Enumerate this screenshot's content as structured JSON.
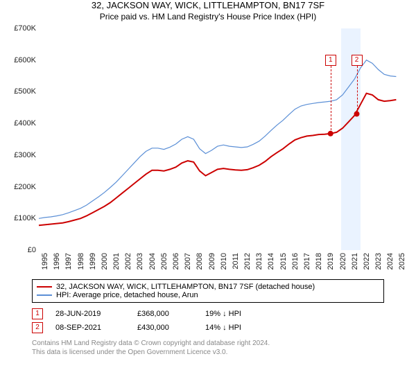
{
  "title": "32, JACKSON WAY, WICK, LITTLEHAMPTON, BN17 7SF",
  "subtitle": "Price paid vs. HM Land Registry's House Price Index (HPI)",
  "chart": {
    "type": "line",
    "background_color": "#ffffff",
    "highlight_color": "#eaf3ff",
    "highlight_x_start": 2020.4,
    "highlight_x_end": 2022.0,
    "xlim": [
      1995,
      2025.5
    ],
    "ylim": [
      0,
      700000
    ],
    "ytick_step": 100000,
    "ytick_labels": [
      "£0",
      "£100K",
      "£200K",
      "£300K",
      "£400K",
      "£500K",
      "£600K",
      "£700K"
    ],
    "xtick_step": 1,
    "xtick_labels": [
      "1995",
      "1996",
      "1997",
      "1998",
      "1999",
      "2000",
      "2001",
      "2002",
      "2003",
      "2004",
      "2005",
      "2006",
      "2007",
      "2008",
      "2009",
      "2010",
      "2011",
      "2012",
      "2013",
      "2014",
      "2015",
      "2016",
      "2017",
      "2018",
      "2019",
      "2020",
      "2021",
      "2022",
      "2023",
      "2024",
      "2025"
    ],
    "grid": false,
    "label_fontsize": 11,
    "title_fontsize": 13,
    "series": [
      {
        "name": "property",
        "label": "32, JACKSON WAY, WICK, LITTLEHAMPTON, BN17 7SF (detached house)",
        "color": "#cc0000",
        "line_width": 2,
        "points": [
          [
            1995,
            78000
          ],
          [
            1995.5,
            80000
          ],
          [
            1996,
            82000
          ],
          [
            1996.5,
            84000
          ],
          [
            1997,
            86000
          ],
          [
            1997.5,
            90000
          ],
          [
            1998,
            95000
          ],
          [
            1998.5,
            100000
          ],
          [
            1999,
            108000
          ],
          [
            1999.5,
            118000
          ],
          [
            2000,
            128000
          ],
          [
            2000.5,
            138000
          ],
          [
            2001,
            150000
          ],
          [
            2001.5,
            165000
          ],
          [
            2002,
            180000
          ],
          [
            2002.5,
            195000
          ],
          [
            2003,
            210000
          ],
          [
            2003.5,
            225000
          ],
          [
            2004,
            240000
          ],
          [
            2004.5,
            252000
          ],
          [
            2005,
            252000
          ],
          [
            2005.5,
            250000
          ],
          [
            2006,
            255000
          ],
          [
            2006.5,
            262000
          ],
          [
            2007,
            275000
          ],
          [
            2007.5,
            282000
          ],
          [
            2008,
            278000
          ],
          [
            2008.5,
            250000
          ],
          [
            2009,
            235000
          ],
          [
            2009.5,
            245000
          ],
          [
            2010,
            255000
          ],
          [
            2010.5,
            258000
          ],
          [
            2011,
            255000
          ],
          [
            2011.5,
            253000
          ],
          [
            2012,
            252000
          ],
          [
            2012.5,
            254000
          ],
          [
            2013,
            260000
          ],
          [
            2013.5,
            268000
          ],
          [
            2014,
            280000
          ],
          [
            2014.5,
            295000
          ],
          [
            2015,
            308000
          ],
          [
            2015.5,
            320000
          ],
          [
            2016,
            335000
          ],
          [
            2016.5,
            348000
          ],
          [
            2017,
            355000
          ],
          [
            2017.5,
            360000
          ],
          [
            2018,
            362000
          ],
          [
            2018.5,
            365000
          ],
          [
            2019,
            366000
          ],
          [
            2019.5,
            368000
          ],
          [
            2020,
            372000
          ],
          [
            2020.5,
            385000
          ],
          [
            2021,
            405000
          ],
          [
            2021.5,
            425000
          ],
          [
            2022,
            460000
          ],
          [
            2022.5,
            495000
          ],
          [
            2023,
            490000
          ],
          [
            2023.5,
            475000
          ],
          [
            2024,
            470000
          ],
          [
            2024.5,
            472000
          ],
          [
            2025,
            475000
          ]
        ]
      },
      {
        "name": "hpi",
        "label": "HPI: Average price, detached house, Arun",
        "color": "#5b8fd6",
        "line_width": 1.2,
        "points": [
          [
            1995,
            100000
          ],
          [
            1995.5,
            103000
          ],
          [
            1996,
            105000
          ],
          [
            1996.5,
            108000
          ],
          [
            1997,
            112000
          ],
          [
            1997.5,
            118000
          ],
          [
            1998,
            125000
          ],
          [
            1998.5,
            132000
          ],
          [
            1999,
            142000
          ],
          [
            1999.5,
            155000
          ],
          [
            2000,
            168000
          ],
          [
            2000.5,
            182000
          ],
          [
            2001,
            198000
          ],
          [
            2001.5,
            215000
          ],
          [
            2002,
            235000
          ],
          [
            2002.5,
            255000
          ],
          [
            2003,
            275000
          ],
          [
            2003.5,
            295000
          ],
          [
            2004,
            312000
          ],
          [
            2004.5,
            322000
          ],
          [
            2005,
            322000
          ],
          [
            2005.5,
            318000
          ],
          [
            2006,
            325000
          ],
          [
            2006.5,
            335000
          ],
          [
            2007,
            350000
          ],
          [
            2007.5,
            358000
          ],
          [
            2008,
            350000
          ],
          [
            2008.5,
            320000
          ],
          [
            2009,
            305000
          ],
          [
            2009.5,
            315000
          ],
          [
            2010,
            328000
          ],
          [
            2010.5,
            332000
          ],
          [
            2011,
            328000
          ],
          [
            2011.5,
            326000
          ],
          [
            2012,
            324000
          ],
          [
            2012.5,
            326000
          ],
          [
            2013,
            334000
          ],
          [
            2013.5,
            344000
          ],
          [
            2014,
            360000
          ],
          [
            2014.5,
            378000
          ],
          [
            2015,
            395000
          ],
          [
            2015.5,
            410000
          ],
          [
            2016,
            428000
          ],
          [
            2016.5,
            445000
          ],
          [
            2017,
            455000
          ],
          [
            2017.5,
            460000
          ],
          [
            2018,
            463000
          ],
          [
            2018.5,
            466000
          ],
          [
            2019,
            468000
          ],
          [
            2019.5,
            470000
          ],
          [
            2020,
            475000
          ],
          [
            2020.5,
            490000
          ],
          [
            2021,
            515000
          ],
          [
            2021.5,
            540000
          ],
          [
            2022,
            575000
          ],
          [
            2022.5,
            600000
          ],
          [
            2023,
            590000
          ],
          [
            2023.5,
            570000
          ],
          [
            2024,
            555000
          ],
          [
            2024.5,
            550000
          ],
          [
            2025,
            548000
          ]
        ]
      }
    ],
    "sale_markers": [
      {
        "n": "1",
        "x": 2019.49,
        "y": 368000,
        "color": "#cc0000",
        "box_top": 38
      },
      {
        "n": "2",
        "x": 2021.69,
        "y": 430000,
        "color": "#cc0000",
        "box_top": 38
      }
    ]
  },
  "legend": {
    "items": [
      {
        "color": "#cc0000",
        "label": "32, JACKSON WAY, WICK, LITTLEHAMPTON, BN17 7SF (detached house)"
      },
      {
        "color": "#5b8fd6",
        "label": "HPI: Average price, detached house, Arun"
      }
    ]
  },
  "sales": [
    {
      "n": "1",
      "color": "#cc0000",
      "date": "28-JUN-2019",
      "price": "£368,000",
      "pct": "19%",
      "arrow": "↓",
      "vs": "HPI"
    },
    {
      "n": "2",
      "color": "#cc0000",
      "date": "08-SEP-2021",
      "price": "£430,000",
      "pct": "14%",
      "arrow": "↓",
      "vs": "HPI"
    }
  ],
  "footer": {
    "line1": "Contains HM Land Registry data © Crown copyright and database right 2024.",
    "line2": "This data is licensed under the Open Government Licence v3.0."
  }
}
